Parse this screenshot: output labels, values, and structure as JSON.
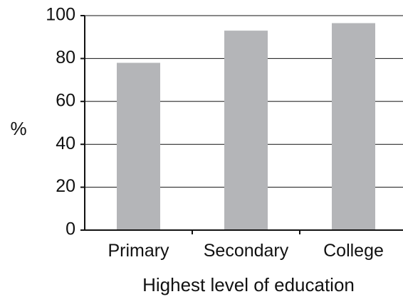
{
  "chart_data": {
    "type": "bar",
    "title": "",
    "categories": [
      "Primary",
      "Secondary",
      "College"
    ],
    "values": [
      78,
      93,
      96.5
    ],
    "xlabel": "Highest level of education",
    "ylabel": "%",
    "ylim": [
      0,
      100
    ],
    "yticks": [
      0,
      20,
      40,
      60,
      80,
      100
    ],
    "grid": true,
    "legend": "none",
    "bar_color": "#b4b5b8",
    "axis_color": "#111111"
  }
}
